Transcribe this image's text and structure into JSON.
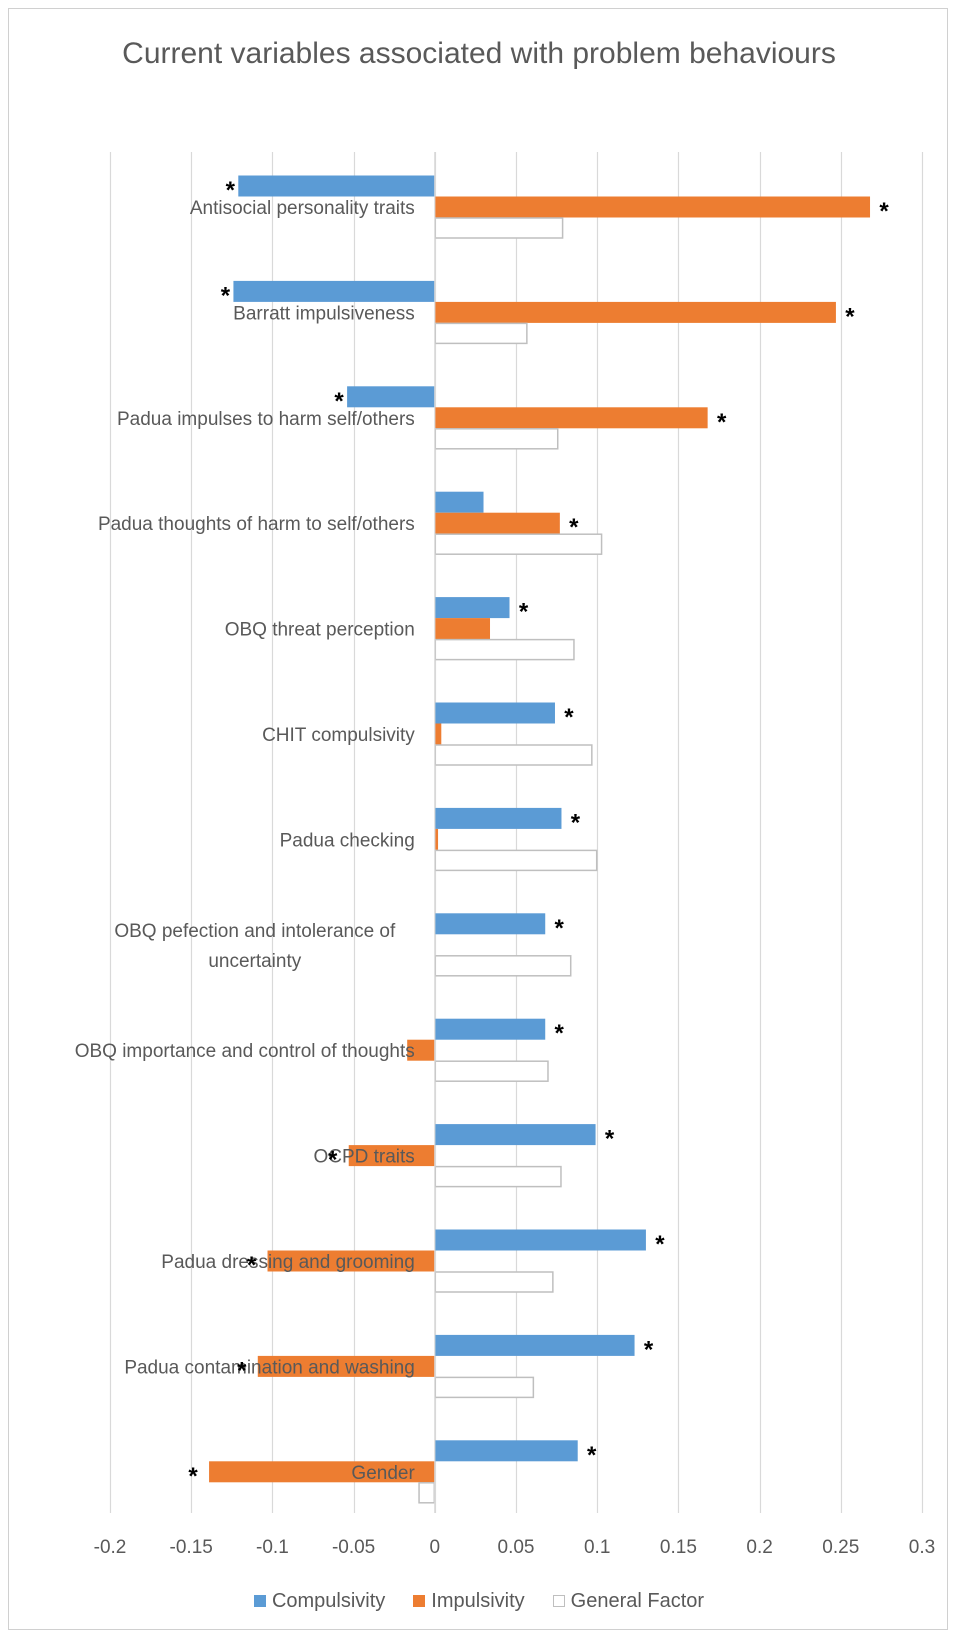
{
  "chart_data": {
    "type": "bar",
    "orientation": "horizontal",
    "title": "Current variables associated with problem behaviours",
    "categories": [
      "Antisocial personality traits",
      "Barratt impulsiveness",
      "Padua impulses to harm self/others",
      "Padua thoughts of harm to self/others",
      "OBQ threat perception",
      "CHIT compulsivity",
      "Padua checking",
      "OBQ pefection and intolerance of uncertainty",
      "OBQ importance and control of thoughts",
      "OCPD traits",
      "Padua dressing and grooming",
      "Padua contamination and washing",
      "Gender"
    ],
    "series": [
      {
        "name": "Compulsivity",
        "color": "#5B9BD5",
        "values": [
          -0.121,
          -0.124,
          -0.054,
          0.03,
          0.046,
          0.074,
          0.078,
          0.068,
          0.068,
          0.099,
          0.13,
          0.123,
          0.088
        ],
        "significant": [
          true,
          true,
          true,
          false,
          true,
          true,
          true,
          true,
          true,
          true,
          true,
          true,
          true
        ]
      },
      {
        "name": "Impulsivity",
        "color": "#ED7D31",
        "values": [
          0.268,
          0.247,
          0.168,
          0.077,
          0.034,
          0.004,
          0.002,
          0.0,
          -0.017,
          -0.053,
          -0.103,
          -0.109,
          -0.139
        ],
        "significant": [
          true,
          true,
          true,
          true,
          false,
          false,
          false,
          false,
          false,
          true,
          true,
          true,
          true
        ]
      },
      {
        "name": "General Factor",
        "color": "#ffffff",
        "stroke": "#bfbfbf",
        "values": [
          0.079,
          0.057,
          0.076,
          0.103,
          0.086,
          0.097,
          0.1,
          0.084,
          0.07,
          0.078,
          0.073,
          0.061,
          -0.01
        ],
        "significant": [
          false,
          false,
          false,
          false,
          false,
          false,
          false,
          false,
          false,
          false,
          false,
          false,
          false
        ]
      }
    ],
    "significance_marker": "*",
    "xlim": [
      -0.2,
      0.3
    ],
    "xticks": [
      -0.2,
      -0.15,
      -0.1,
      -0.05,
      0,
      0.05,
      0.1,
      0.15,
      0.2,
      0.25,
      0.3
    ],
    "xtick_labels": [
      "-0.2",
      "-0.15",
      "-0.1",
      "-0.05",
      "0",
      "0.05",
      "0.1",
      "0.15",
      "0.2",
      "0.25",
      "0.3"
    ],
    "grid": true,
    "legend_position": "bottom"
  }
}
